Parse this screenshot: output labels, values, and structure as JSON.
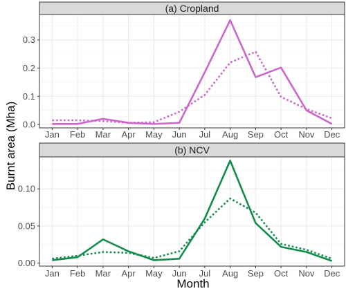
{
  "chart_data": {
    "type": "line",
    "xlabel": "Month",
    "ylabel": "Burnt area (Mha)",
    "categories": [
      "Jan",
      "Feb",
      "Mar",
      "Apr",
      "May",
      "Jun",
      "Jul",
      "Aug",
      "Sep",
      "Oct",
      "Nov",
      "Dec"
    ],
    "grid": true,
    "panels": [
      {
        "title": "(a) Cropland",
        "color": "#CC66CC",
        "ylim": [
          -0.012,
          0.39
        ],
        "yticks": [
          0.0,
          0.1,
          0.2,
          0.3
        ],
        "ytick_labels": [
          "0.0",
          "0.1",
          "0.2",
          "0.3"
        ],
        "series": [
          {
            "style": "solid",
            "values": [
              0.002,
              0.002,
              0.02,
              0.006,
              0.002,
              0.006,
              0.185,
              0.37,
              0.168,
              0.202,
              0.05,
              0.002
            ]
          },
          {
            "style": "dotted",
            "values": [
              0.015,
              0.015,
              0.012,
              0.006,
              0.008,
              0.045,
              0.105,
              0.22,
              0.258,
              0.098,
              0.055,
              0.022
            ]
          }
        ]
      },
      {
        "title": "(b) NCV",
        "color": "#128C4A",
        "ylim": [
          -0.004,
          0.143
        ],
        "yticks": [
          0.0,
          0.05,
          0.1
        ],
        "ytick_labels": [
          "0.00",
          "0.05",
          "0.10"
        ],
        "series": [
          {
            "style": "solid",
            "values": [
              0.004,
              0.008,
              0.032,
              0.016,
              0.004,
              0.006,
              0.06,
              0.138,
              0.054,
              0.022,
              0.015,
              0.003
            ]
          },
          {
            "style": "dotted",
            "values": [
              0.006,
              0.01,
              0.015,
              0.014,
              0.007,
              0.016,
              0.055,
              0.087,
              0.068,
              0.026,
              0.018,
              0.006
            ]
          }
        ]
      }
    ]
  }
}
